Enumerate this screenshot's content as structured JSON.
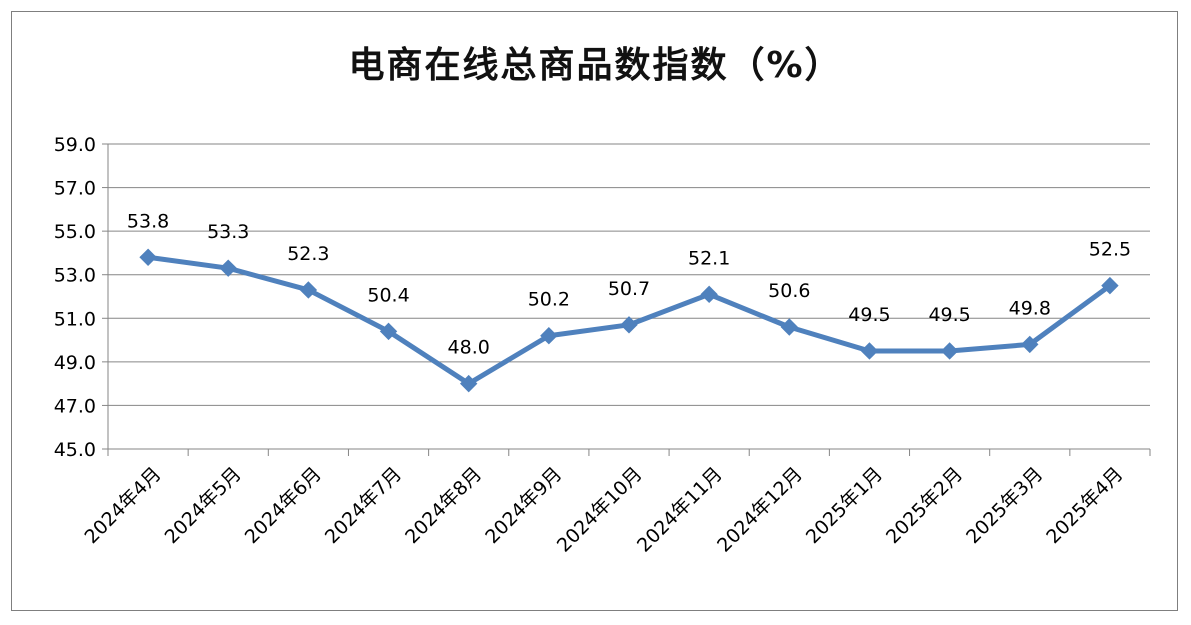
{
  "chart_data": {
    "type": "line",
    "title": "电商在线总商品数指数（%）",
    "categories": [
      "2024年4月",
      "2024年5月",
      "2024年6月",
      "2024年7月",
      "2024年8月",
      "2024年9月",
      "2024年10月",
      "2024年11月",
      "2024年12月",
      "2025年1月",
      "2025年2月",
      "2025年3月",
      "2025年4月"
    ],
    "series": [
      {
        "values": [
          53.8,
          53.3,
          52.3,
          50.4,
          48.0,
          50.2,
          50.7,
          52.1,
          50.6,
          49.5,
          49.5,
          49.8,
          52.5
        ]
      }
    ],
    "y_ticks": [
      "45.0",
      "47.0",
      "49.0",
      "51.0",
      "53.0",
      "55.0",
      "57.0",
      "59.0"
    ],
    "ylim": [
      45.0,
      59.0
    ],
    "grid": true,
    "legend": "none",
    "data_labels": [
      "53.8",
      "53.3",
      "52.3",
      "50.4",
      "48.0",
      "50.2",
      "50.7",
      "52.1",
      "50.6",
      "49.5",
      "49.5",
      "49.8",
      "52.5"
    ],
    "colors": {
      "line": "#4f81bd",
      "grid": "#868686",
      "text": "#000000"
    }
  }
}
